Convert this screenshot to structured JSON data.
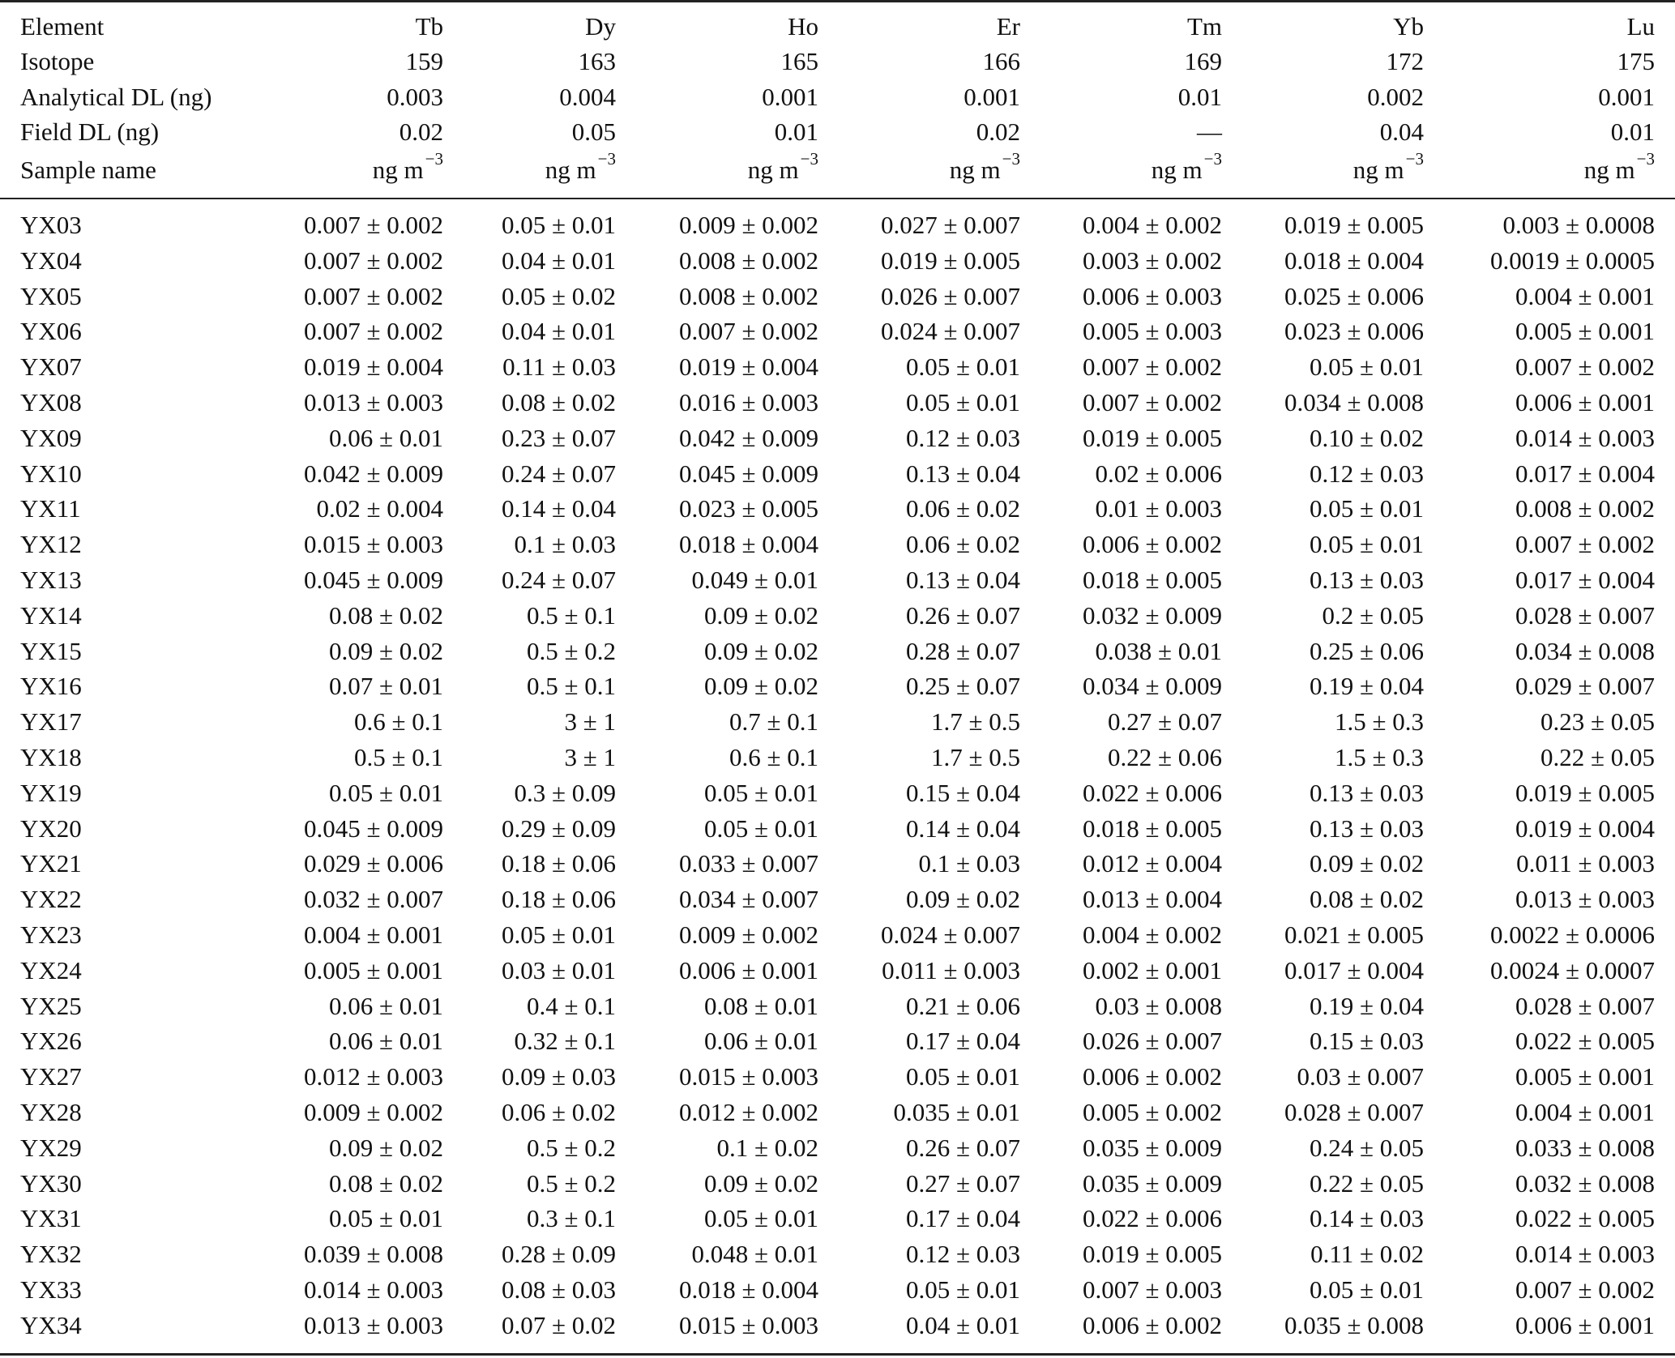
{
  "header": {
    "element": {
      "label": "Element",
      "values": [
        "Tb",
        "Dy",
        "Ho",
        "Er",
        "Tm",
        "Yb",
        "Lu"
      ]
    },
    "isotope": {
      "label": "Isotope",
      "values": [
        "159",
        "163",
        "165",
        "166",
        "169",
        "172",
        "175"
      ]
    },
    "analytical_dl": {
      "label": "Analytical DL (ng)",
      "values": [
        "0.003",
        "0.004",
        "0.001",
        "0.001",
        "0.01",
        "0.002",
        "0.001"
      ]
    },
    "field_dl": {
      "label": "Field DL (ng)",
      "values": [
        "0.02",
        "0.05",
        "0.01",
        "0.02",
        "—",
        "0.04",
        "0.01"
      ]
    },
    "units": {
      "label": "Sample name",
      "unit": "ng m",
      "exponent": "−3"
    }
  },
  "rows": [
    {
      "sample": "YX03",
      "values": [
        "0.007 ± 0.002",
        "0.05 ± 0.01",
        "0.009 ± 0.002",
        "0.027 ± 0.007",
        "0.004 ± 0.002",
        "0.019 ± 0.005",
        "0.003 ± 0.0008"
      ]
    },
    {
      "sample": "YX04",
      "values": [
        "0.007 ± 0.002",
        "0.04 ± 0.01",
        "0.008 ± 0.002",
        "0.019 ± 0.005",
        "0.003 ± 0.002",
        "0.018 ± 0.004",
        "0.0019 ± 0.0005"
      ]
    },
    {
      "sample": "YX05",
      "values": [
        "0.007 ± 0.002",
        "0.05 ± 0.02",
        "0.008 ± 0.002",
        "0.026 ± 0.007",
        "0.006 ± 0.003",
        "0.025 ± 0.006",
        "0.004 ± 0.001"
      ]
    },
    {
      "sample": "YX06",
      "values": [
        "0.007 ± 0.002",
        "0.04 ± 0.01",
        "0.007 ± 0.002",
        "0.024 ± 0.007",
        "0.005 ± 0.003",
        "0.023 ± 0.006",
        "0.005 ± 0.001"
      ]
    },
    {
      "sample": "YX07",
      "values": [
        "0.019 ± 0.004",
        "0.11 ± 0.03",
        "0.019 ± 0.004",
        "0.05 ± 0.01",
        "0.007 ± 0.002",
        "0.05 ± 0.01",
        "0.007 ± 0.002"
      ]
    },
    {
      "sample": "YX08",
      "values": [
        "0.013 ± 0.003",
        "0.08 ± 0.02",
        "0.016 ± 0.003",
        "0.05 ± 0.01",
        "0.007 ± 0.002",
        "0.034 ± 0.008",
        "0.006 ± 0.001"
      ]
    },
    {
      "sample": "YX09",
      "values": [
        "0.06 ± 0.01",
        "0.23 ± 0.07",
        "0.042 ± 0.009",
        "0.12 ± 0.03",
        "0.019 ± 0.005",
        "0.10 ± 0.02",
        "0.014 ± 0.003"
      ]
    },
    {
      "sample": "YX10",
      "values": [
        "0.042 ± 0.009",
        "0.24 ± 0.07",
        "0.045 ± 0.009",
        "0.13 ± 0.04",
        "0.02 ± 0.006",
        "0.12 ± 0.03",
        "0.017 ± 0.004"
      ]
    },
    {
      "sample": "YX11",
      "values": [
        "0.02 ± 0.004",
        "0.14 ± 0.04",
        "0.023 ± 0.005",
        "0.06 ± 0.02",
        "0.01 ± 0.003",
        "0.05 ± 0.01",
        "0.008 ± 0.002"
      ]
    },
    {
      "sample": "YX12",
      "values": [
        "0.015 ± 0.003",
        "0.1 ± 0.03",
        "0.018 ± 0.004",
        "0.06 ± 0.02",
        "0.006 ± 0.002",
        "0.05 ± 0.01",
        "0.007 ± 0.002"
      ]
    },
    {
      "sample": "YX13",
      "values": [
        "0.045 ± 0.009",
        "0.24 ± 0.07",
        "0.049 ± 0.01",
        "0.13 ± 0.04",
        "0.018 ± 0.005",
        "0.13 ± 0.03",
        "0.017 ± 0.004"
      ]
    },
    {
      "sample": "YX14",
      "values": [
        "0.08 ± 0.02",
        "0.5 ± 0.1",
        "0.09 ± 0.02",
        "0.26 ± 0.07",
        "0.032 ± 0.009",
        "0.2 ± 0.05",
        "0.028 ± 0.007"
      ]
    },
    {
      "sample": "YX15",
      "values": [
        "0.09 ± 0.02",
        "0.5 ± 0.2",
        "0.09 ± 0.02",
        "0.28 ± 0.07",
        "0.038 ± 0.01",
        "0.25 ± 0.06",
        "0.034 ± 0.008"
      ]
    },
    {
      "sample": "YX16",
      "values": [
        "0.07 ± 0.01",
        "0.5 ± 0.1",
        "0.09 ± 0.02",
        "0.25 ± 0.07",
        "0.034 ± 0.009",
        "0.19 ± 0.04",
        "0.029 ± 0.007"
      ]
    },
    {
      "sample": "YX17",
      "values": [
        "0.6 ± 0.1",
        "3 ± 1",
        "0.7 ± 0.1",
        "1.7 ± 0.5",
        "0.27 ± 0.07",
        "1.5 ± 0.3",
        "0.23 ± 0.05"
      ]
    },
    {
      "sample": "YX18",
      "values": [
        "0.5 ± 0.1",
        "3 ± 1",
        "0.6 ± 0.1",
        "1.7 ± 0.5",
        "0.22 ± 0.06",
        "1.5 ± 0.3",
        "0.22 ± 0.05"
      ]
    },
    {
      "sample": "YX19",
      "values": [
        "0.05 ± 0.01",
        "0.3 ± 0.09",
        "0.05 ± 0.01",
        "0.15 ± 0.04",
        "0.022 ± 0.006",
        "0.13 ± 0.03",
        "0.019 ± 0.005"
      ]
    },
    {
      "sample": "YX20",
      "values": [
        "0.045 ± 0.009",
        "0.29 ± 0.09",
        "0.05 ± 0.01",
        "0.14 ± 0.04",
        "0.018 ± 0.005",
        "0.13 ± 0.03",
        "0.019 ± 0.004"
      ]
    },
    {
      "sample": "YX21",
      "values": [
        "0.029 ± 0.006",
        "0.18 ± 0.06",
        "0.033 ± 0.007",
        "0.1 ± 0.03",
        "0.012 ± 0.004",
        "0.09 ± 0.02",
        "0.011 ± 0.003"
      ]
    },
    {
      "sample": "YX22",
      "values": [
        "0.032 ± 0.007",
        "0.18 ± 0.06",
        "0.034 ± 0.007",
        "0.09 ± 0.02",
        "0.013 ± 0.004",
        "0.08 ± 0.02",
        "0.013 ± 0.003"
      ]
    },
    {
      "sample": "YX23",
      "values": [
        "0.004 ± 0.001",
        "0.05 ± 0.01",
        "0.009 ± 0.002",
        "0.024 ± 0.007",
        "0.004 ± 0.002",
        "0.021 ± 0.005",
        "0.0022 ± 0.0006"
      ]
    },
    {
      "sample": "YX24",
      "values": [
        "0.005 ± 0.001",
        "0.03 ± 0.01",
        "0.006 ± 0.001",
        "0.011 ± 0.003",
        "0.002 ± 0.001",
        "0.017 ± 0.004",
        "0.0024 ± 0.0007"
      ]
    },
    {
      "sample": "YX25",
      "values": [
        "0.06 ± 0.01",
        "0.4 ± 0.1",
        "0.08 ± 0.01",
        "0.21 ± 0.06",
        "0.03 ± 0.008",
        "0.19 ± 0.04",
        "0.028 ± 0.007"
      ]
    },
    {
      "sample": "YX26",
      "values": [
        "0.06 ± 0.01",
        "0.32 ± 0.1",
        "0.06 ± 0.01",
        "0.17 ± 0.04",
        "0.026 ± 0.007",
        "0.15 ± 0.03",
        "0.022 ± 0.005"
      ]
    },
    {
      "sample": "YX27",
      "values": [
        "0.012 ± 0.003",
        "0.09 ± 0.03",
        "0.015 ± 0.003",
        "0.05 ± 0.01",
        "0.006 ± 0.002",
        "0.03 ± 0.007",
        "0.005 ± 0.001"
      ]
    },
    {
      "sample": "YX28",
      "values": [
        "0.009 ± 0.002",
        "0.06 ± 0.02",
        "0.012 ± 0.002",
        "0.035 ± 0.01",
        "0.005 ± 0.002",
        "0.028 ± 0.007",
        "0.004 ± 0.001"
      ]
    },
    {
      "sample": "YX29",
      "values": [
        "0.09 ± 0.02",
        "0.5 ± 0.2",
        "0.1 ± 0.02",
        "0.26 ± 0.07",
        "0.035 ± 0.009",
        "0.24 ± 0.05",
        "0.033 ± 0.008"
      ]
    },
    {
      "sample": "YX30",
      "values": [
        "0.08 ± 0.02",
        "0.5 ± 0.2",
        "0.09 ± 0.02",
        "0.27 ± 0.07",
        "0.035 ± 0.009",
        "0.22 ± 0.05",
        "0.032 ± 0.008"
      ]
    },
    {
      "sample": "YX31",
      "values": [
        "0.05 ± 0.01",
        "0.3 ± 0.1",
        "0.05 ± 0.01",
        "0.17 ± 0.04",
        "0.022 ± 0.006",
        "0.14 ± 0.03",
        "0.022 ± 0.005"
      ]
    },
    {
      "sample": "YX32",
      "values": [
        "0.039 ± 0.008",
        "0.28 ± 0.09",
        "0.048 ± 0.01",
        "0.12 ± 0.03",
        "0.019 ± 0.005",
        "0.11 ± 0.02",
        "0.014 ± 0.003"
      ]
    },
    {
      "sample": "YX33",
      "values": [
        "0.014 ± 0.003",
        "0.08 ± 0.03",
        "0.018 ± 0.004",
        "0.05 ± 0.01",
        "0.007 ± 0.003",
        "0.05 ± 0.01",
        "0.007 ± 0.002"
      ]
    },
    {
      "sample": "YX34",
      "values": [
        "0.013 ± 0.003",
        "0.07 ± 0.02",
        "0.015 ± 0.003",
        "0.04 ± 0.01",
        "0.006 ± 0.002",
        "0.035 ± 0.008",
        "0.006 ± 0.001"
      ]
    }
  ]
}
